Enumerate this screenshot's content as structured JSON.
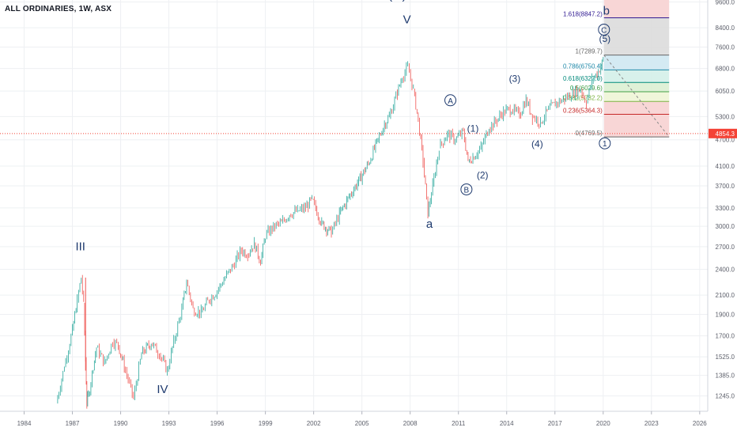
{
  "header": {
    "symbol_title": "ALL ORDINARIES, 1W, ASX"
  },
  "chart_data": {
    "type": "line",
    "title": "ALL ORDINARIES, 1W, ASX",
    "xlabel": "",
    "ylabel": "",
    "x_range": [
      1982.5,
      2026.5
    ],
    "y_range": [
      1150,
      9700
    ],
    "y_scale": "log",
    "x_ticks": [
      "1984",
      "1987",
      "1990",
      "1993",
      "1996",
      "1999",
      "2002",
      "2005",
      "2008",
      "2011",
      "2014",
      "2017",
      "2020",
      "2023",
      "2026"
    ],
    "y_ticks": [
      "9600.0",
      "8400.0",
      "7600.0",
      "6800.0",
      "6050.0",
      "5300.0",
      "4700.0",
      "4100.0",
      "3700.0",
      "3300.0",
      "3000.0",
      "2700.0",
      "2400.0",
      "2100.0",
      "1900.0",
      "1700.0",
      "1525.0",
      "1385.0",
      "1245.0"
    ],
    "grid": true,
    "legend": "none",
    "series": [
      {
        "color": "#26a69a",
        "down_color": "#ef5350",
        "x": [
          1986.0,
          1986.5,
          1987.0,
          1987.3,
          1987.55,
          1987.7,
          1987.82,
          1987.9,
          1988.0,
          1988.3,
          1988.5,
          1989.0,
          1989.5,
          1989.85,
          1990.3,
          1990.8,
          1991.3,
          1991.9,
          1992.4,
          1992.9,
          1993.3,
          1993.8,
          1994.1,
          1994.5,
          1995.0,
          1995.5,
          1996.0,
          1996.5,
          1997.0,
          1997.5,
          1997.9,
          1998.3,
          1998.7,
          1999.0,
          1999.5,
          2000.0,
          2000.5,
          2001.0,
          2001.5,
          2001.9,
          2002.5,
          2003.1,
          2003.6,
          2004.2,
          2004.8,
          2005.4,
          2006.0,
          2006.4,
          2006.7,
          2007.2,
          2007.5,
          2007.85,
          2008.2,
          2008.5,
          2008.8,
          2009.1,
          2009.4,
          2009.8,
          2010.3,
          2010.8,
          2011.3,
          2011.6,
          2011.9,
          2012.4,
          2012.9,
          2013.4,
          2013.8,
          2014.3,
          2014.8,
          2015.2,
          2015.6,
          2016.1,
          2016.6,
          2017.1,
          2017.6,
          2018.1,
          2018.6,
          2018.95,
          2019.3,
          2019.7,
          2020.0
        ],
        "values": [
          1200,
          1450,
          1750,
          2050,
          2300,
          2000,
          1500,
          1200,
          1250,
          1450,
          1600,
          1480,
          1650,
          1620,
          1420,
          1230,
          1550,
          1640,
          1550,
          1420,
          1650,
          1950,
          2250,
          1950,
          1920,
          2050,
          2150,
          2300,
          2450,
          2650,
          2600,
          2750,
          2500,
          2850,
          3000,
          3050,
          3200,
          3250,
          3300,
          3450,
          3050,
          2900,
          3200,
          3500,
          3800,
          4150,
          4700,
          5100,
          5300,
          6000,
          6500,
          6850,
          6100,
          5200,
          4200,
          3200,
          3700,
          4500,
          4850,
          4700,
          4900,
          4200,
          4300,
          4500,
          5000,
          5200,
          5450,
          5500,
          5350,
          5800,
          5300,
          5150,
          5500,
          5700,
          5800,
          6000,
          6100,
          5700,
          6400,
          6700,
          7100
        ]
      }
    ],
    "annotations": [
      {
        "text": "(III)",
        "x": 2007.2,
        "y": 9750
      },
      {
        "text": "V",
        "x": 2007.8,
        "y": 8600
      },
      {
        "text": "III",
        "x": 1987.5,
        "y": 2650
      },
      {
        "text": "IV",
        "x": 1992.6,
        "y": 1265
      },
      {
        "text": "a",
        "x": 2009.2,
        "y": 2980
      },
      {
        "text": "(1)",
        "x": 2011.9,
        "y": 4900
      },
      {
        "text": "(2)",
        "x": 2012.5,
        "y": 3850
      },
      {
        "text": "(3)",
        "x": 2014.5,
        "y": 6350
      },
      {
        "text": "(4)",
        "x": 2015.9,
        "y": 4520
      },
      {
        "text": "(5)",
        "x": 2020.1,
        "y": 7800
      },
      {
        "text": "b",
        "x": 2020.2,
        "y": 9000
      },
      {
        "text": "A",
        "x": 2010.5,
        "y": 5650,
        "circled": true
      },
      {
        "text": "B",
        "x": 2011.5,
        "y": 3560,
        "circled": true
      },
      {
        "text": "C",
        "x": 2020.05,
        "y": 8150,
        "circled": true
      },
      {
        "text": "1",
        "x": 2020.1,
        "y": 4520,
        "circled": true
      }
    ],
    "fib_retracement": {
      "x_start": 2020.05,
      "x_end": 2024.1,
      "levels": [
        {
          "label": "1.618(8847.2)",
          "ratio": 1.618,
          "price": 8847.2,
          "color": "#311b92",
          "fill": "#c5c8f5"
        },
        {
          "label": "1(7289.7)",
          "ratio": 1,
          "price": 7289.7,
          "color": "#666666",
          "fill": "#dcdcdc"
        },
        {
          "label": "0.786(6750.4)",
          "ratio": 0.786,
          "price": 6750.4,
          "color": "#1e88a8",
          "fill": "#cfe8f2"
        },
        {
          "label": "0.618(6327.0)",
          "ratio": 0.618,
          "price": 6327.0,
          "color": "#00897b",
          "fill": "#d4efe9"
        },
        {
          "label": "0.5(6029.6)",
          "ratio": 0.5,
          "price": 6029.6,
          "color": "#43a047",
          "fill": "#dcefd3"
        },
        {
          "label": "0.382(5732.2)",
          "ratio": 0.382,
          "price": 5732.2,
          "color": "#7cb342",
          "fill": "#eef5d6"
        },
        {
          "label": "0.236(5364.3)",
          "ratio": 0.236,
          "price": 5364.3,
          "color": "#c62828",
          "fill": "#f7d2d2"
        },
        {
          "label": "0(4769.5)",
          "ratio": 0,
          "price": 4769.5,
          "color": "#666666",
          "fill": "#f7d2d2"
        }
      ],
      "top_band_fill": "#f7d2d2"
    },
    "current_price": {
      "label": "4854.3",
      "value": 4854.3,
      "color": "#f44336"
    }
  }
}
